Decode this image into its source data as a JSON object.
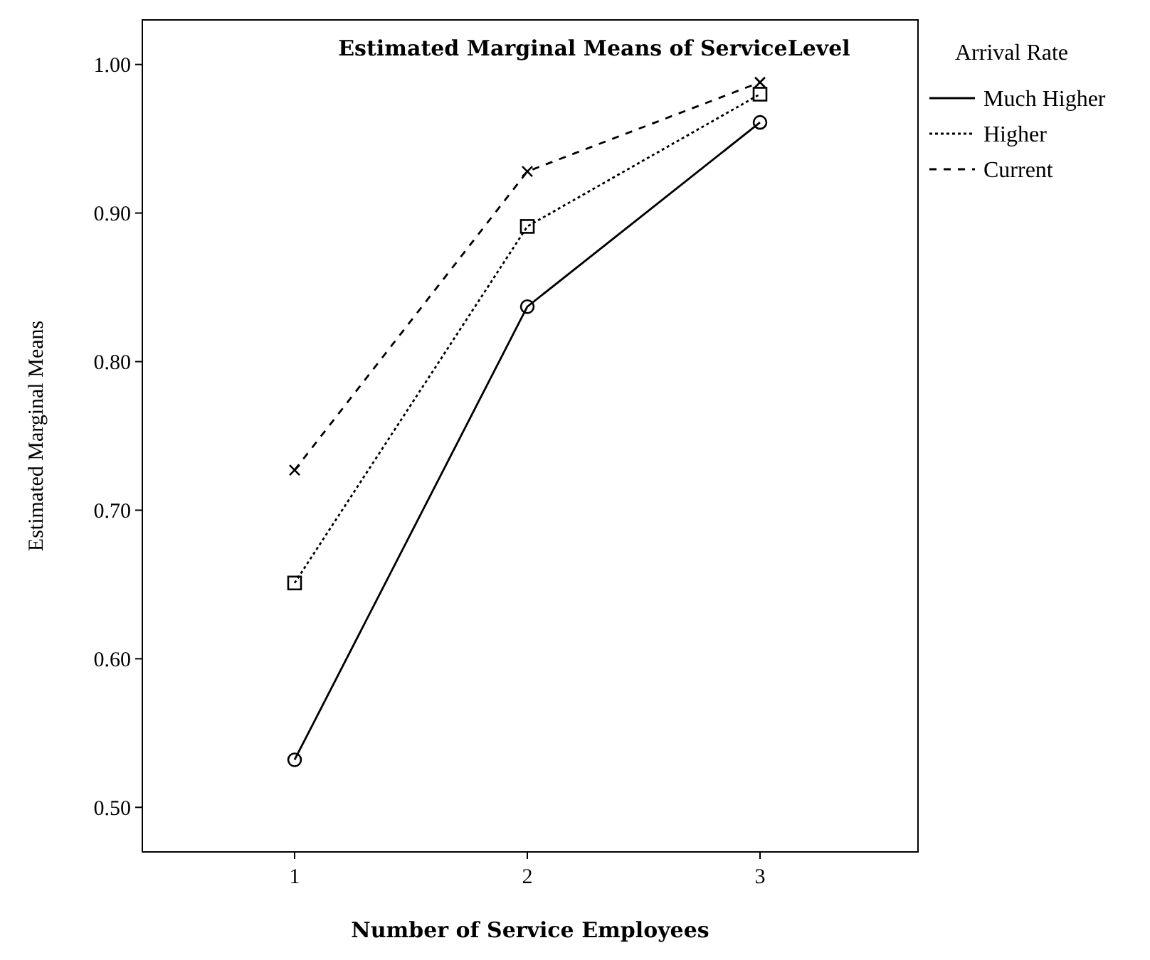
{
  "chart_data": {
    "type": "line",
    "title": "Estimated Marginal Means of ServiceLevel",
    "xlabel": "Number of Service Employees",
    "ylabel": "Estimated Marginal Means",
    "legend_title": "Arrival Rate",
    "legend": "right",
    "categories": [
      "1",
      "2",
      "3"
    ],
    "ylim": [
      0.47,
      1.03
    ],
    "yticks": [
      {
        "value": 0.5,
        "label": "0.50"
      },
      {
        "value": 0.6,
        "label": "0.60"
      },
      {
        "value": 0.7,
        "label": "0.70"
      },
      {
        "value": 0.8,
        "label": "0.80"
      },
      {
        "value": 0.9,
        "label": "0.90"
      },
      {
        "value": 1.0,
        "label": "1.00"
      }
    ],
    "grid": false,
    "series": [
      {
        "name": "Much Higher",
        "color": "#000000",
        "values": [
          0.532,
          0.837,
          0.961
        ],
        "marker": "circle",
        "line_style": "solid"
      },
      {
        "name": "Higher",
        "color": "#000000",
        "values": [
          0.651,
          0.891,
          0.98
        ],
        "marker": "square",
        "line_style": "dotted"
      },
      {
        "name": "Current",
        "color": "#000000",
        "values": [
          0.727,
          0.928,
          0.988
        ],
        "marker": "cross",
        "line_style": "dashed"
      }
    ]
  }
}
